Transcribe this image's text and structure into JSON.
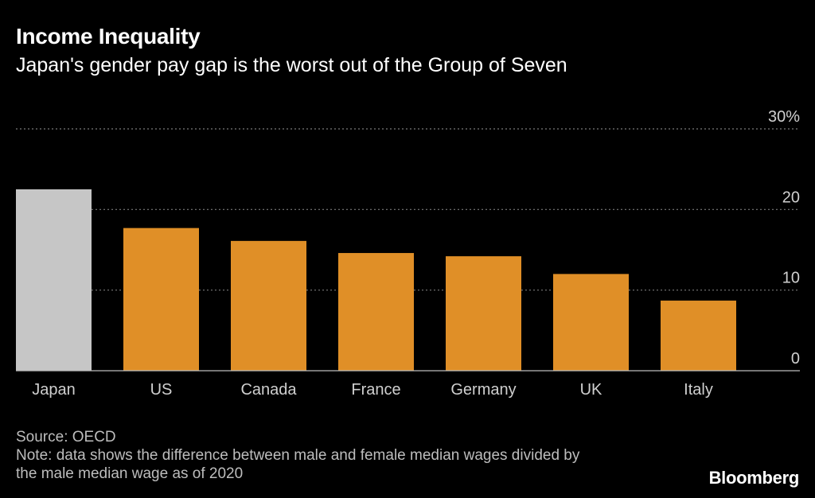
{
  "header": {
    "title": "Income Inequality",
    "subtitle": "Japan's gender pay gap is the worst out of the Group of Seven"
  },
  "chart_data": {
    "type": "bar",
    "categories": [
      "Japan",
      "US",
      "Canada",
      "France",
      "Germany",
      "UK",
      "Italy"
    ],
    "values": [
      22.5,
      17.7,
      16.1,
      14.6,
      14.2,
      12.0,
      8.7
    ],
    "colors": [
      "#c6c6c6",
      "#e08f27",
      "#e08f27",
      "#e08f27",
      "#e08f27",
      "#e08f27",
      "#e08f27"
    ],
    "ylim": [
      0,
      30
    ],
    "yticks": [
      0,
      10,
      20,
      30
    ],
    "ytick_labels": [
      "0",
      "10",
      "20",
      "30%"
    ],
    "y_axis_position": "right",
    "grid": true,
    "xlabel": "",
    "ylabel": ""
  },
  "footer": {
    "source": "Source: OECD",
    "note_line1": "Note: data shows the difference between male and female median wages divided by",
    "note_line2": "the male median wage as of 2020"
  },
  "brand": "Bloomberg",
  "colors": {
    "background": "#000000",
    "highlight_bar": "#c6c6c6",
    "bar": "#e08f27",
    "grid": "#7a7a7a",
    "text": "#ffffff",
    "footer_text": "#bdbdbd"
  }
}
